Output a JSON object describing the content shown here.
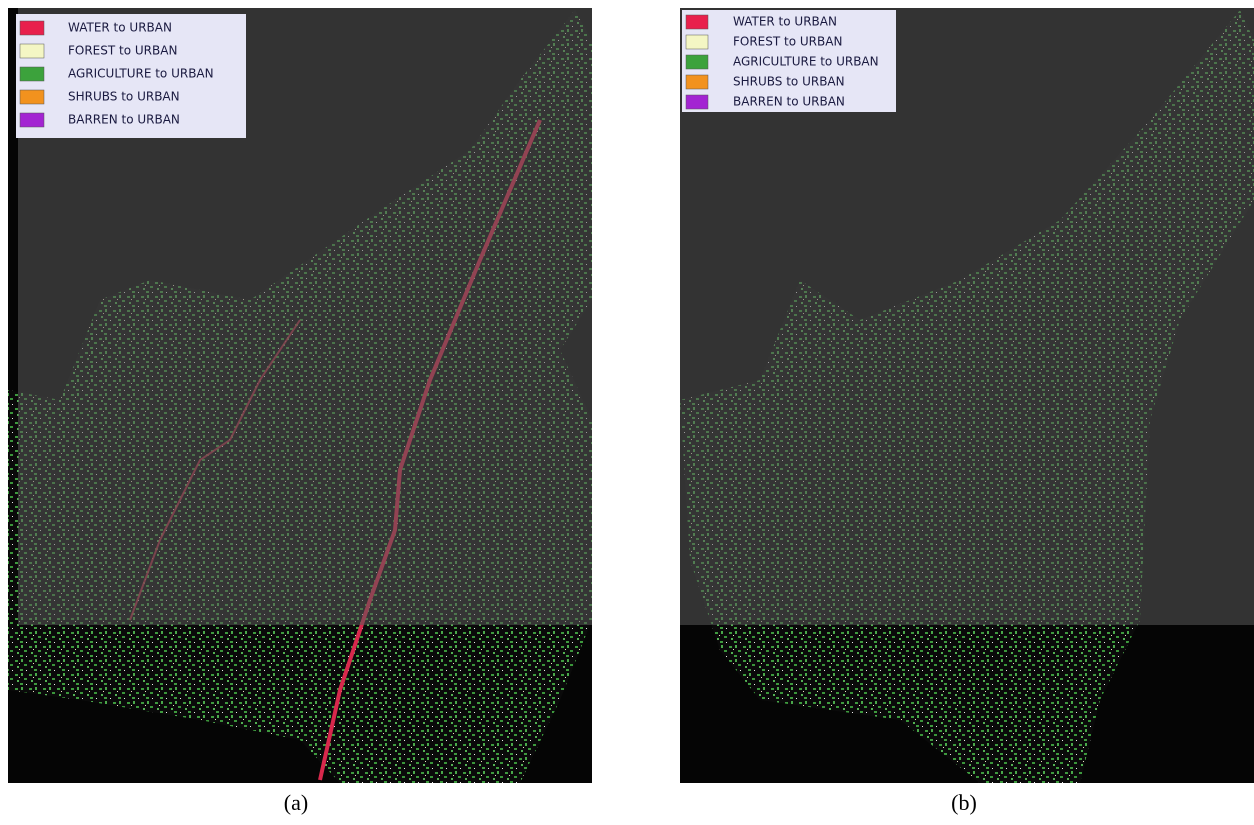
{
  "panels": [
    {
      "legend": [
        {
          "label": "WATER to URBAN",
          "color": "#e8204c"
        },
        {
          "label": "FOREST to URBAN",
          "color": "#f4f6c4"
        },
        {
          "label": "AGRICULTURE to URBAN",
          "color": "#3ca23c"
        },
        {
          "label": "SHRUBS to URBAN",
          "color": "#f2921e"
        },
        {
          "label": "BARREN to URBAN",
          "color": "#a324d2"
        }
      ],
      "caption": "(a)"
    },
    {
      "legend": [
        {
          "label": "WATER to URBAN",
          "color": "#e8204c"
        },
        {
          "label": "FOREST to URBAN",
          "color": "#f4f6c4"
        },
        {
          "label": "AGRICULTURE to URBAN",
          "color": "#3ca23c"
        },
        {
          "label": "SHRUBS to URBAN",
          "color": "#f2921e"
        },
        {
          "label": "BARREN to URBAN",
          "color": "#a324d2"
        }
      ],
      "caption": "(b)"
    }
  ]
}
